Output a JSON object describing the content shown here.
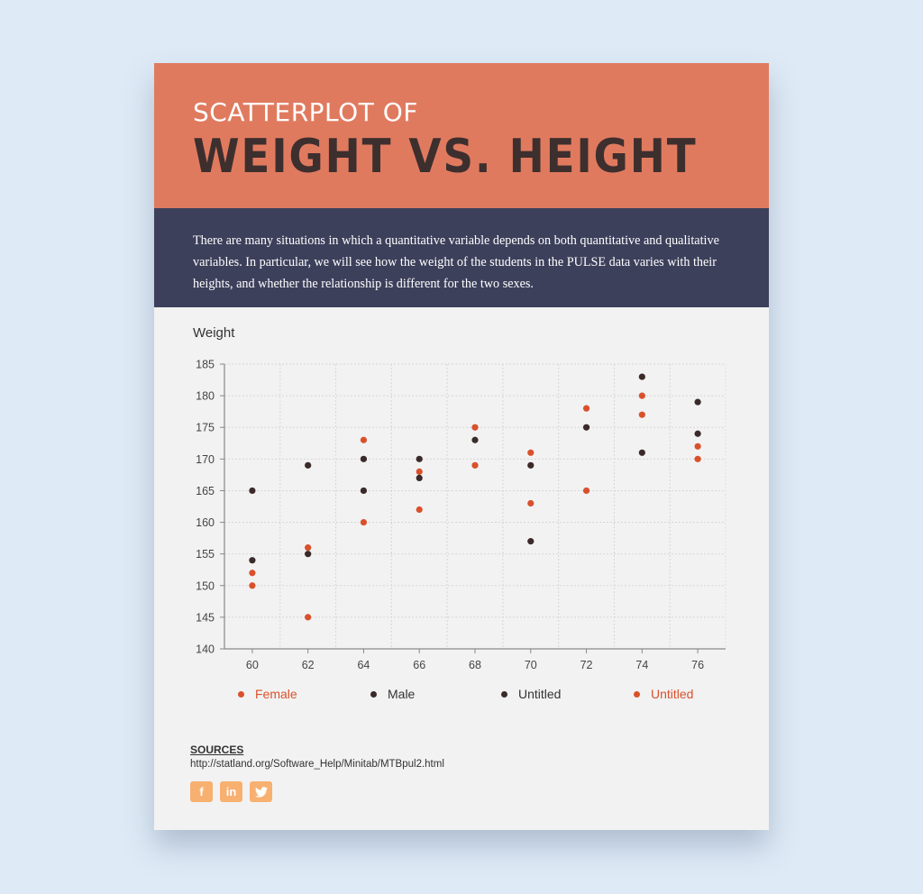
{
  "header": {
    "subtitle": "SCATTERPLOT OF",
    "title": "WEIGHT VS. HEIGHT"
  },
  "description": "There are many situations in which a quantitative variable depends on both quantitative and qualitative variables. In particular, we will see how the weight of the students in the PULSE data varies with their heights, and whether the relationship is different for the two sexes.",
  "colors": {
    "header_bg": "#e07a5f",
    "desc_bg": "#3d405b",
    "female": "#d9512c",
    "male": "#3b2a2a",
    "social_bg": "#f8b070"
  },
  "chart_data": {
    "type": "scatter",
    "title": "",
    "xlabel": "",
    "ylabel": "Weight",
    "xlim": [
      59,
      77
    ],
    "ylim": [
      140,
      185
    ],
    "x_ticks": [
      60,
      62,
      64,
      66,
      68,
      70,
      72,
      74,
      76
    ],
    "y_ticks": [
      140,
      145,
      150,
      155,
      160,
      165,
      170,
      175,
      180,
      185
    ],
    "grid": true,
    "legend_position": "bottom",
    "series": [
      {
        "name": "Female",
        "color": "#d9512c",
        "points": [
          [
            60,
            152
          ],
          [
            60,
            150
          ],
          [
            62,
            156
          ],
          [
            62,
            145
          ],
          [
            64,
            173
          ],
          [
            64,
            160
          ],
          [
            66,
            168
          ],
          [
            66,
            162
          ],
          [
            68,
            175
          ],
          [
            68,
            169
          ],
          [
            70,
            171
          ],
          [
            70,
            163
          ],
          [
            72,
            178
          ],
          [
            72,
            165
          ],
          [
            74,
            180
          ],
          [
            74,
            177
          ],
          [
            76,
            172
          ],
          [
            76,
            170
          ]
        ]
      },
      {
        "name": "Male",
        "color": "#3b2a2a",
        "points": [
          [
            60,
            165
          ],
          [
            60,
            154
          ],
          [
            62,
            169
          ],
          [
            62,
            155
          ],
          [
            64,
            170
          ],
          [
            64,
            165
          ],
          [
            66,
            170
          ],
          [
            66,
            167
          ],
          [
            68,
            173
          ],
          [
            70,
            169
          ],
          [
            70,
            157
          ],
          [
            72,
            175
          ],
          [
            74,
            183
          ],
          [
            74,
            171
          ],
          [
            76,
            179
          ],
          [
            76,
            174
          ]
        ]
      },
      {
        "name": "Untitled",
        "color": "#3b2a2a",
        "points": []
      },
      {
        "name": "Untitled",
        "color": "#d9512c",
        "points": []
      }
    ]
  },
  "legend": [
    {
      "label": "Female",
      "color": "#d9512c",
      "text_color": "#d9512c"
    },
    {
      "label": "Male",
      "color": "#3b2a2a",
      "text_color": "#333333"
    },
    {
      "label": "Untitled",
      "color": "#3b2a2a",
      "text_color": "#333333"
    },
    {
      "label": "Untitled",
      "color": "#d9512c",
      "text_color": "#d9512c"
    }
  ],
  "sources": {
    "title": "SOURCES",
    "link": "http://statland.org/Software_Help/Minitab/MTBpul2.html"
  },
  "social": [
    {
      "name": "facebook",
      "glyph": "f"
    },
    {
      "name": "linkedin",
      "glyph": "in"
    },
    {
      "name": "twitter",
      "glyph": "🐦"
    }
  ]
}
